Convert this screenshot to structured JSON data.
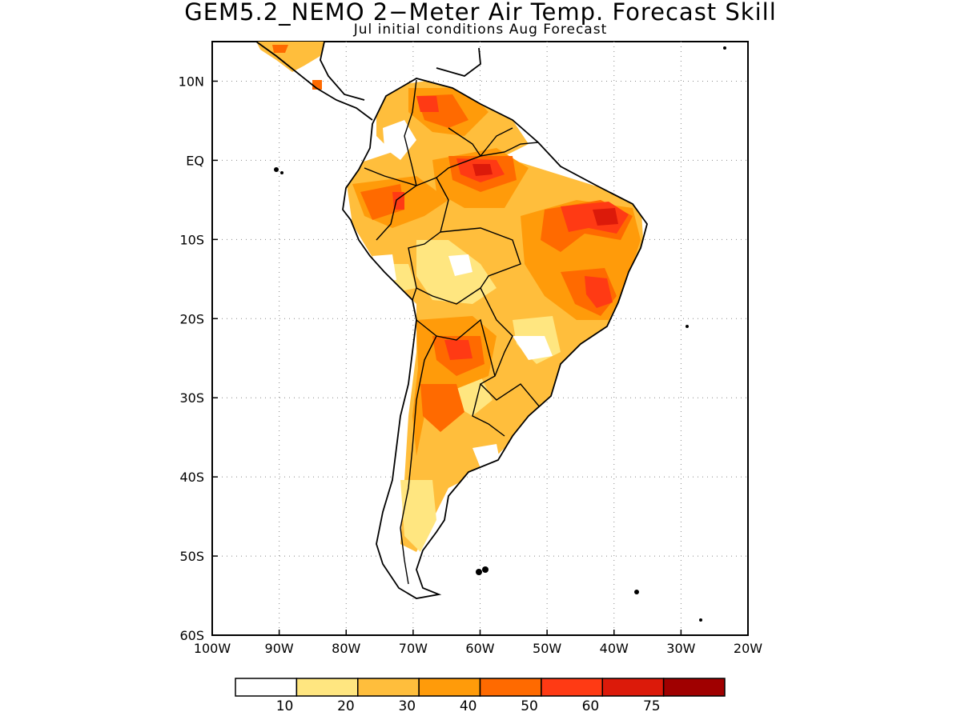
{
  "title": "GEM5.2_NEMO 2−Meter Air Temp. Forecast Skill",
  "subtitle": "Jul initial conditions  Aug Forecast",
  "map": {
    "region": "South America",
    "projection": "lat-lon",
    "lon_range": [
      -100,
      -20
    ],
    "lat_range": [
      -60,
      15
    ],
    "grid": "dotted",
    "x_ticks": [
      "100W",
      "90W",
      "80W",
      "70W",
      "60W",
      "50W",
      "40W",
      "30W",
      "20W"
    ],
    "y_ticks": [
      "10N",
      "EQ",
      "10S",
      "20S",
      "30S",
      "40S",
      "50S",
      "60S"
    ]
  },
  "colorbar": {
    "labels": [
      "10",
      "20",
      "30",
      "40",
      "50",
      "60",
      "75"
    ],
    "colors": [
      "#ffffff",
      "#ffe680",
      "#ffbe3c",
      "#ff9b0a",
      "#ff6a00",
      "#ff3a14",
      "#dc1a0a",
      "#a00000"
    ]
  }
}
